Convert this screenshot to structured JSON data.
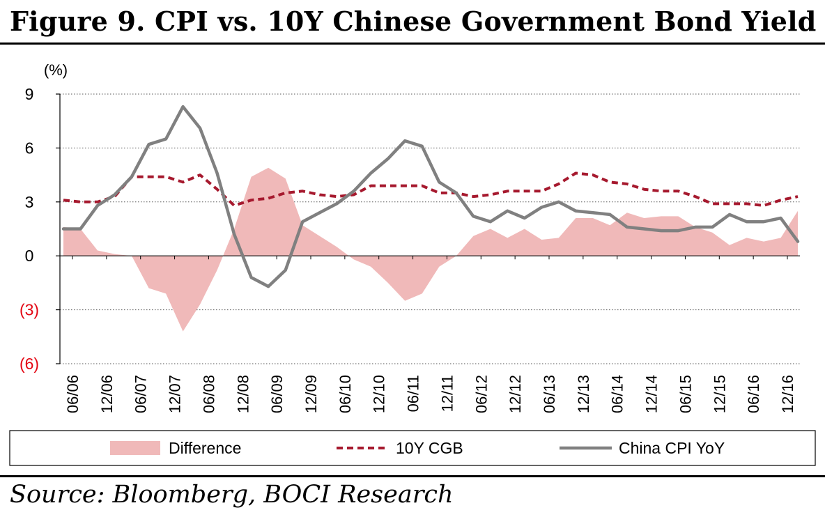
{
  "figure": {
    "title": "Figure 9. CPI vs. 10Y Chinese Government Bond Yield",
    "source": "Source: Bloomberg, BOCI Research"
  },
  "chart_data": {
    "type": "line",
    "y_unit_label": "(%)",
    "ylim": [
      -6,
      9
    ],
    "y_ticks": [
      {
        "value": 9,
        "label": "9",
        "color": "#000000"
      },
      {
        "value": 6,
        "label": "6",
        "color": "#000000"
      },
      {
        "value": 3,
        "label": "3",
        "color": "#000000"
      },
      {
        "value": 0,
        "label": "0",
        "color": "#000000"
      },
      {
        "value": -3,
        "label": "(3)",
        "color": "#e30613"
      },
      {
        "value": -6,
        "label": "(6)",
        "color": "#e30613"
      }
    ],
    "x_tick_labels": [
      "06/06",
      "12/06",
      "06/07",
      "12/07",
      "06/08",
      "12/08",
      "06/09",
      "12/09",
      "06/10",
      "12/10",
      "06/11",
      "12/11",
      "06/12",
      "12/12",
      "06/13",
      "12/13",
      "06/14",
      "12/14",
      "06/15",
      "12/15",
      "06/16",
      "12/16"
    ],
    "grid": true,
    "legend_position": "bottom",
    "series": [
      {
        "name": "Difference",
        "style": "area",
        "color": "#f0b9b9",
        "values": [
          1.6,
          1.5,
          0.3,
          0.1,
          0.0,
          -1.8,
          -2.1,
          -4.2,
          -2.7,
          -0.8,
          1.5,
          4.4,
          4.9,
          4.3,
          1.7,
          1.1,
          0.5,
          -0.2,
          -0.6,
          -1.5,
          -2.5,
          -2.1,
          -0.6,
          0.0,
          1.1,
          1.5,
          1.0,
          1.5,
          0.9,
          1.0,
          2.1,
          2.1,
          1.7,
          2.4,
          2.1,
          2.2,
          2.2,
          1.6,
          1.3,
          0.6,
          1.0,
          0.8,
          1.0,
          2.5
        ]
      },
      {
        "name": "10Y CGB",
        "style": "dashed",
        "color": "#a6192e",
        "values": [
          3.1,
          3.0,
          3.0,
          3.3,
          4.4,
          4.4,
          4.4,
          4.1,
          4.5,
          3.7,
          2.8,
          3.1,
          3.2,
          3.5,
          3.6,
          3.4,
          3.3,
          3.4,
          3.9,
          3.9,
          3.9,
          3.9,
          3.5,
          3.5,
          3.3,
          3.4,
          3.6,
          3.6,
          3.6,
          4.0,
          4.6,
          4.5,
          4.1,
          4.0,
          3.7,
          3.6,
          3.6,
          3.3,
          2.9,
          2.9,
          2.9,
          2.8,
          3.1,
          3.3
        ]
      },
      {
        "name": "China CPI YoY",
        "style": "solid",
        "color": "#808080",
        "values": [
          1.5,
          1.5,
          2.8,
          3.4,
          4.4,
          6.2,
          6.5,
          8.3,
          7.1,
          4.6,
          1.2,
          -1.2,
          -1.7,
          -0.8,
          1.9,
          2.4,
          2.9,
          3.6,
          4.6,
          5.4,
          6.4,
          6.1,
          4.1,
          3.5,
          2.2,
          1.9,
          2.5,
          2.1,
          2.7,
          3.0,
          2.5,
          2.4,
          2.3,
          1.6,
          1.5,
          1.4,
          1.4,
          1.6,
          1.6,
          2.3,
          1.9,
          1.9,
          2.1,
          0.8
        ]
      }
    ]
  }
}
